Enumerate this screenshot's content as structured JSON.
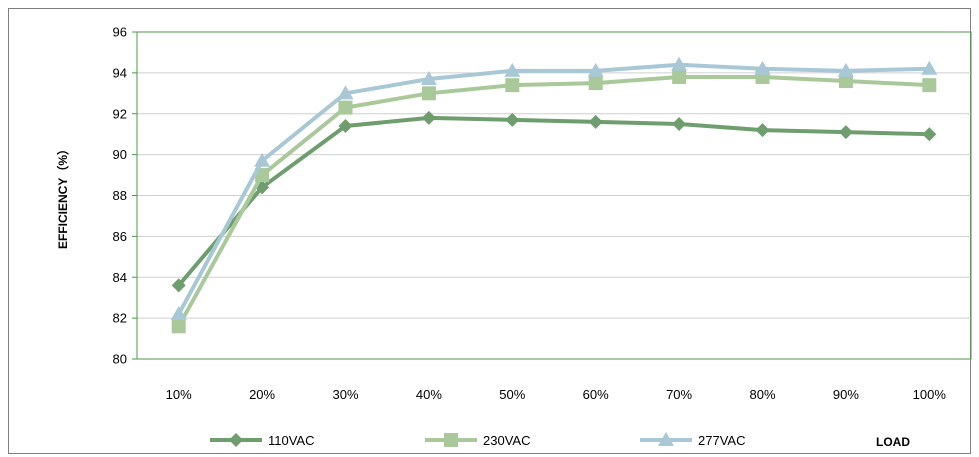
{
  "chart_data": {
    "type": "line",
    "title": "",
    "xlabel": "LOAD",
    "ylabel": "EFFICIENCY（%）",
    "categories": [
      "10%",
      "20%",
      "30%",
      "40%",
      "50%",
      "60%",
      "70%",
      "80%",
      "90%",
      "100%"
    ],
    "ylim": [
      80,
      96
    ],
    "yticks": [
      "80",
      "82",
      "84",
      "86",
      "88",
      "90",
      "92",
      "94",
      "96"
    ],
    "grid": {
      "horizontal": true,
      "vertical": false
    },
    "legend_position": "bottom",
    "colors": {
      "plot_border": "#4e9a4a",
      "gridline": "#d0d0d0",
      "outer_border": "#7f7f7f"
    },
    "series": [
      {
        "name": "110VAC",
        "marker": "diamond",
        "color": "#6e9e6e",
        "values": [
          83.6,
          88.4,
          91.4,
          91.8,
          91.7,
          91.6,
          91.5,
          91.2,
          91.1,
          91.0
        ]
      },
      {
        "name": "230VAC",
        "marker": "square",
        "color": "#a9c99a",
        "values": [
          81.6,
          89.0,
          92.3,
          93.0,
          93.4,
          93.5,
          93.8,
          93.8,
          93.6,
          93.4
        ]
      },
      {
        "name": "277VAC",
        "marker": "triangle",
        "color": "#a8c8d6",
        "values": [
          82.2,
          89.7,
          93.0,
          93.7,
          94.1,
          94.1,
          94.4,
          94.2,
          94.1,
          94.2
        ]
      }
    ]
  }
}
